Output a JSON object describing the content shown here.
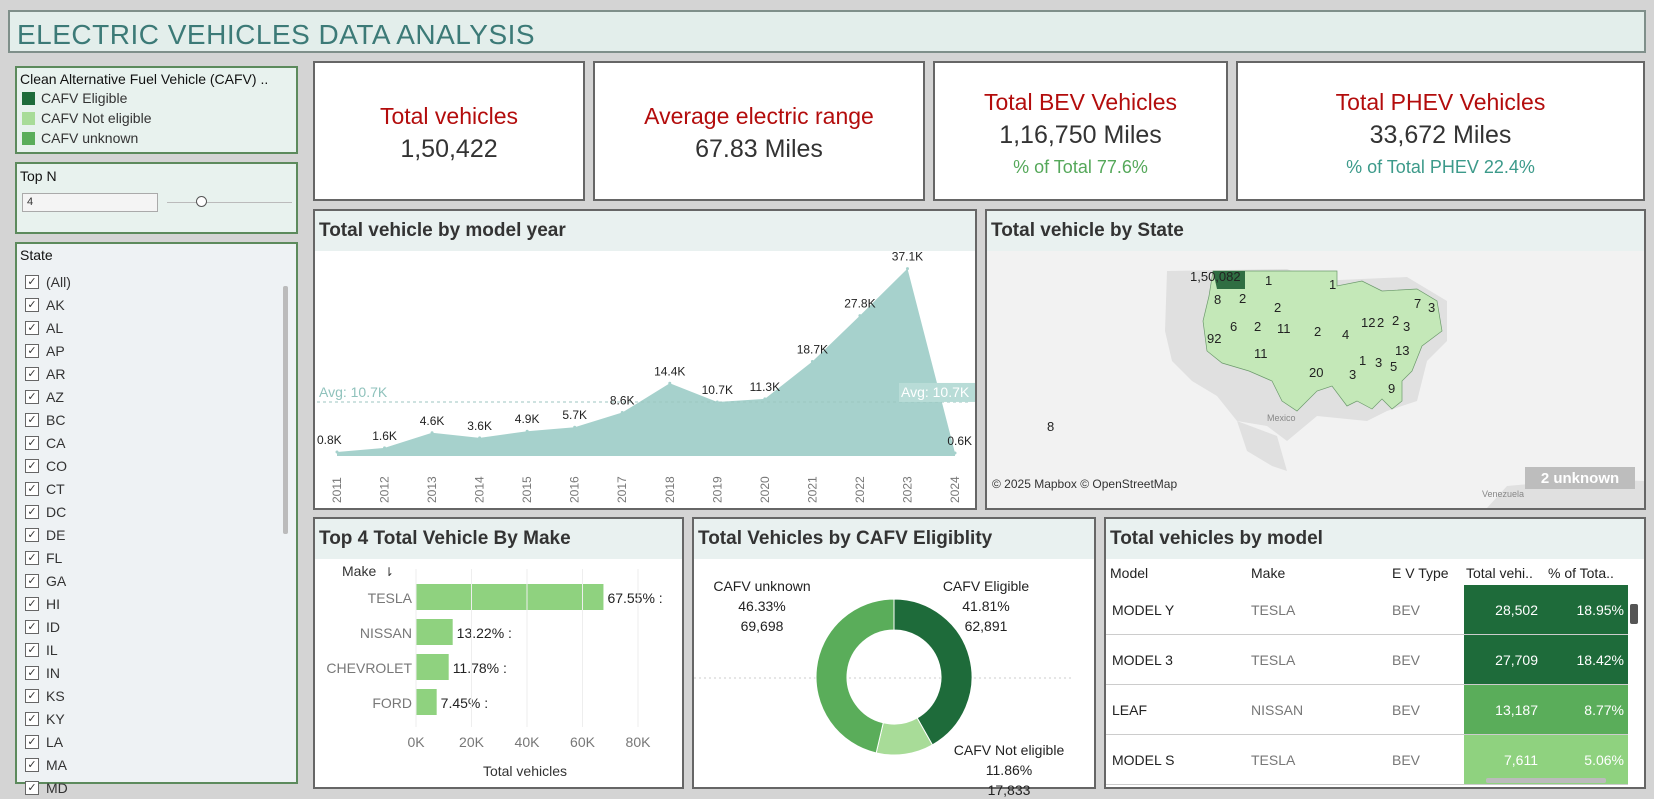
{
  "title": "ELECTRIC VEHICLES DATA ANALYSIS",
  "legend": {
    "title": "Clean Alternative Fuel Vehicle (CAFV) ..",
    "items": [
      {
        "label": "CAFV Eligible",
        "color": "#1e6b3a"
      },
      {
        "label": "CAFV Not eligible",
        "color": "#a8dc98"
      },
      {
        "label": "CAFV unknown",
        "color": "#5aad5a"
      }
    ]
  },
  "topn": {
    "label": "Top N",
    "value": "4"
  },
  "state_filter": {
    "label": "State",
    "items": [
      "(All)",
      "AK",
      "AL",
      "AP",
      "AR",
      "AZ",
      "BC",
      "CA",
      "CO",
      "CT",
      "DC",
      "DE",
      "FL",
      "GA",
      "HI",
      "ID",
      "IL",
      "IN",
      "KS",
      "KY",
      "LA",
      "MA",
      "MD"
    ]
  },
  "kpis": {
    "total": {
      "title": "Total  vehicles",
      "value": "1,50,422"
    },
    "range": {
      "title": "Average electric range",
      "value": "67.83 Miles"
    },
    "bev": {
      "title": "Total BEV Vehicles",
      "value": "1,16,750 Miles",
      "sub": "% of Total 77.6%"
    },
    "phev": {
      "title": "Total PHEV Vehicles",
      "value": "33,672 Miles",
      "sub": "% of Total  PHEV  22.4%"
    }
  },
  "year_chart": {
    "title": "Total vehicle by model year",
    "avg_label": "Avg: 10.7K"
  },
  "map": {
    "title": "Total vehicle  by State",
    "labels": [
      "1,50,082",
      "1",
      "2",
      "1",
      "8",
      "2",
      "6",
      "2",
      "11",
      "2",
      "4",
      "12",
      "2",
      "2",
      "7",
      "3",
      "92",
      "3",
      "1",
      "3",
      "5",
      "13",
      "11",
      "20",
      "3",
      "9",
      "8"
    ],
    "country": "Mexico",
    "country2": "Venezuela",
    "attribution": "© 2025 Mapbox © OpenStreetMap",
    "unknown": "2 unknown"
  },
  "make_chart": {
    "title": "Top 4 Total Vehicle By Make",
    "make_header": "Make",
    "axis_title": "Total vehicles",
    "ticks": [
      "0K",
      "20K",
      "40K",
      "60K",
      "80K"
    ]
  },
  "cafv_chart": {
    "title": "Total Vehicles by CAFV Eligiblity",
    "labels": [
      {
        "name": "CAFV Eligible",
        "pct": "41.81%",
        "value": "62,891"
      },
      {
        "name": "CAFV unknown",
        "pct": "46.33%",
        "value": "69,698"
      },
      {
        "name": "CAFV Not eligible",
        "pct": "11.86%",
        "value": "17,833"
      }
    ]
  },
  "model_table": {
    "title": "Total vehicles by model",
    "headers": [
      "Model",
      "Make",
      "E V Type",
      "Total vehi..",
      "% of Tota.."
    ],
    "rows": [
      {
        "model": "MODEL Y",
        "make": "TESLA",
        "type": "BEV",
        "total": "28,502",
        "pct": "18.95%",
        "color": "#1e6b3a"
      },
      {
        "model": "MODEL 3",
        "make": "TESLA",
        "type": "BEV",
        "total": "27,709",
        "pct": "18.42%",
        "color": "#1e6b3a"
      },
      {
        "model": "LEAF",
        "make": "NISSAN",
        "type": "BEV",
        "total": "13,187",
        "pct": "8.77%",
        "color": "#5aad5a"
      },
      {
        "model": "MODEL S",
        "make": "TESLA",
        "type": "BEV",
        "total": "7,611",
        "pct": "5.06%",
        "color": "#8fd27f"
      }
    ]
  },
  "chart_data": [
    {
      "type": "area",
      "title": "Total vehicle by model year",
      "x": [
        "2011",
        "2012",
        "2013",
        "2014",
        "2015",
        "2016",
        "2017",
        "2018",
        "2019",
        "2020",
        "2021",
        "2022",
        "2023",
        "2024"
      ],
      "values": [
        0.8,
        1.6,
        4.6,
        3.6,
        4.9,
        5.7,
        8.6,
        14.4,
        10.7,
        11.3,
        18.7,
        27.8,
        37.1,
        0.6
      ],
      "data_labels": [
        "0.8K",
        "1.6K",
        "4.6K",
        "3.6K",
        "4.9K",
        "5.7K",
        "8.6K",
        "14.4K",
        "10.7K",
        "11.3K",
        "18.7K",
        "27.8K",
        "37.1K",
        "0.6K"
      ],
      "unit": "K",
      "average": 10.7,
      "ylim": [
        0,
        39
      ]
    },
    {
      "type": "bar",
      "title": "Top 4 Total Vehicle By Make",
      "categories": [
        "TESLA",
        "NISSAN",
        "CHEVROLET",
        "FORD"
      ],
      "values": [
        67.55,
        13.22,
        11.78,
        7.45
      ],
      "data_labels": [
        "67.55% :",
        "13.22% :",
        "11.78% :",
        "7.45% :"
      ],
      "xlabel": "Total vehicles",
      "xlim": [
        0,
        80
      ],
      "color": "#8fd27f"
    },
    {
      "type": "pie",
      "title": "Total Vehicles by CAFV Eligiblity",
      "categories": [
        "CAFV Eligible",
        "CAFV Not eligible",
        "CAFV unknown"
      ],
      "values": [
        62891,
        17833,
        69698
      ],
      "colors": [
        "#1e6b3a",
        "#a8dc98",
        "#5aad5a"
      ]
    }
  ]
}
